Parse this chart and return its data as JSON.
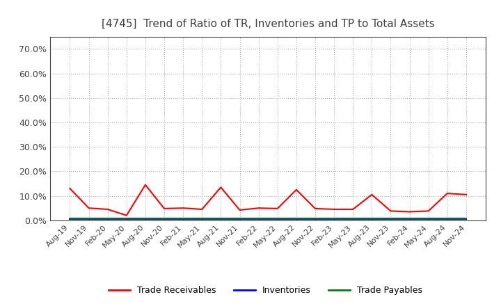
{
  "title": "[4745]  Trend of Ratio of TR, Inventories and TP to Total Assets",
  "title_color": "#404040",
  "background_color": "#ffffff",
  "plot_background": "#ffffff",
  "grid_color": "#b0b0b0",
  "ylim": [
    0.0,
    0.75
  ],
  "yticks": [
    0.0,
    0.1,
    0.2,
    0.3,
    0.4,
    0.5,
    0.6,
    0.7
  ],
  "ytick_labels": [
    "0.0%",
    "10.0%",
    "20.0%",
    "30.0%",
    "40.0%",
    "50.0%",
    "60.0%",
    "70.0%"
  ],
  "x_labels": [
    "Aug-19",
    "Nov-19",
    "Feb-20",
    "May-20",
    "Aug-20",
    "Nov-20",
    "Feb-21",
    "May-21",
    "Aug-21",
    "Nov-21",
    "Feb-22",
    "May-22",
    "Aug-22",
    "Nov-22",
    "Feb-23",
    "May-23",
    "Aug-23",
    "Nov-23",
    "Feb-24",
    "May-24",
    "Aug-24",
    "Nov-24"
  ],
  "trade_receivables": [
    0.13,
    0.05,
    0.045,
    0.02,
    0.145,
    0.048,
    0.05,
    0.045,
    0.135,
    0.042,
    0.05,
    0.048,
    0.125,
    0.048,
    0.045,
    0.045,
    0.105,
    0.038,
    0.035,
    0.038,
    0.11,
    0.105
  ],
  "inventories": [
    0.005,
    0.005,
    0.005,
    0.005,
    0.005,
    0.005,
    0.005,
    0.005,
    0.005,
    0.005,
    0.005,
    0.005,
    0.005,
    0.005,
    0.005,
    0.005,
    0.005,
    0.005,
    0.005,
    0.005,
    0.005,
    0.005
  ],
  "trade_payables": [
    0.008,
    0.008,
    0.008,
    0.008,
    0.008,
    0.008,
    0.008,
    0.008,
    0.008,
    0.008,
    0.008,
    0.008,
    0.008,
    0.008,
    0.008,
    0.008,
    0.008,
    0.008,
    0.008,
    0.008,
    0.008,
    0.008
  ],
  "tr_color": "#ff0000",
  "inv_color": "#0000ff",
  "tp_color": "#008000",
  "line_width": 1.5,
  "legend_labels": [
    "Trade Receivables",
    "Inventories",
    "Trade Payables"
  ],
  "legend_colors": [
    "#ff0000",
    "#0000ff",
    "#008000"
  ]
}
